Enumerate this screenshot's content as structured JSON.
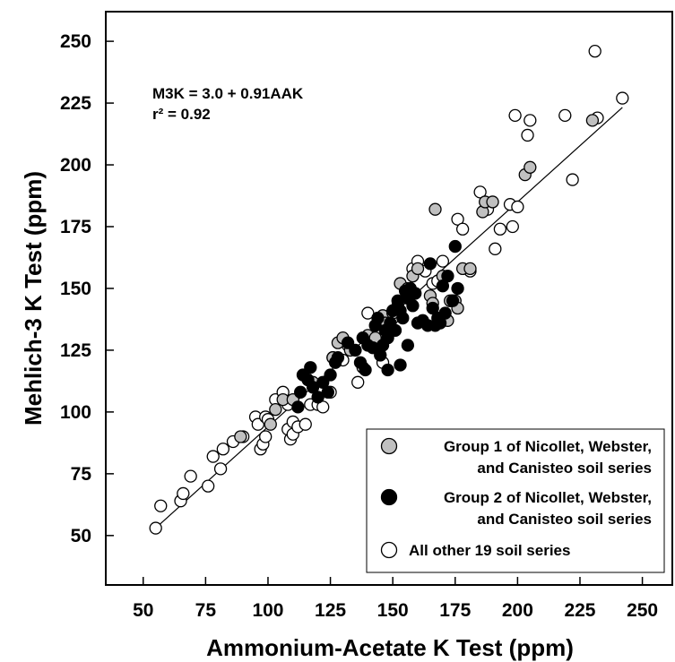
{
  "chart_data": {
    "type": "scatter",
    "xlabel": "Ammonium-Acetate K Test (ppm)",
    "ylabel": "Mehlich-3 K Test (ppm)",
    "xlim": [
      35,
      262
    ],
    "ylim": [
      30,
      262
    ],
    "xticks": [
      50,
      75,
      100,
      125,
      150,
      175,
      200,
      225,
      250
    ],
    "yticks": [
      50,
      75,
      100,
      125,
      150,
      175,
      200,
      225,
      250
    ],
    "grid": false,
    "legend_position": "bottom-right",
    "annotations": {
      "equation": "M3K = 3.0 + 0.91AAK",
      "r2": "r² = 0.92"
    },
    "regression": {
      "intercept": 3.0,
      "slope": 0.91,
      "x_range": [
        55,
        242
      ]
    },
    "series": [
      {
        "name": "Group 1 of Nicollet, Webster, and Canisteo soil series",
        "legend_lines": [
          "Group 1 of Nicollet, Webster,",
          "and Canisteo soil series"
        ],
        "marker": "filled-gray",
        "color": "#c0c0c0",
        "points": [
          [
            89,
            90
          ],
          [
            101,
            95
          ],
          [
            103,
            101
          ],
          [
            106,
            105
          ],
          [
            110,
            105
          ],
          [
            118,
            112
          ],
          [
            126,
            122
          ],
          [
            128,
            128
          ],
          [
            130,
            130
          ],
          [
            133,
            125
          ],
          [
            140,
            131
          ],
          [
            143,
            130
          ],
          [
            146,
            139
          ],
          [
            147,
            136
          ],
          [
            150,
            140
          ],
          [
            153,
            152
          ],
          [
            156,
            150
          ],
          [
            158,
            155
          ],
          [
            160,
            158
          ],
          [
            165,
            147
          ],
          [
            166,
            144
          ],
          [
            167,
            182
          ],
          [
            170,
            155
          ],
          [
            172,
            137
          ],
          [
            173,
            145
          ],
          [
            175,
            145
          ],
          [
            176,
            142
          ],
          [
            178,
            158
          ],
          [
            181,
            158
          ],
          [
            186,
            181
          ],
          [
            187,
            185
          ],
          [
            190,
            185
          ],
          [
            203,
            196
          ],
          [
            205,
            199
          ],
          [
            230,
            218
          ]
        ]
      },
      {
        "name": "Group 2 of Nicollet, Webster, and Canisteo soil series",
        "legend_lines": [
          "Group 2 of Nicollet, Webster,",
          "and Canisteo soil series"
        ],
        "marker": "filled-black",
        "color": "#000000",
        "points": [
          [
            112,
            102
          ],
          [
            113,
            108
          ],
          [
            114,
            115
          ],
          [
            116,
            113
          ],
          [
            117,
            118
          ],
          [
            118,
            110
          ],
          [
            120,
            106
          ],
          [
            122,
            112
          ],
          [
            124,
            108
          ],
          [
            125,
            115
          ],
          [
            127,
            120
          ],
          [
            128,
            122
          ],
          [
            132,
            128
          ],
          [
            135,
            125
          ],
          [
            137,
            120
          ],
          [
            138,
            130
          ],
          [
            139,
            117
          ],
          [
            140,
            127
          ],
          [
            142,
            126
          ],
          [
            143,
            135
          ],
          [
            144,
            138
          ],
          [
            145,
            123
          ],
          [
            146,
            127
          ],
          [
            147,
            133
          ],
          [
            148,
            130
          ],
          [
            149,
            136
          ],
          [
            150,
            141
          ],
          [
            151,
            133
          ],
          [
            152,
            145
          ],
          [
            153,
            141
          ],
          [
            154,
            138
          ],
          [
            155,
            149
          ],
          [
            156,
            146
          ],
          [
            157,
            150
          ],
          [
            158,
            143
          ],
          [
            159,
            148
          ],
          [
            160,
            136
          ],
          [
            162,
            137
          ],
          [
            164,
            135
          ],
          [
            165,
            160
          ],
          [
            166,
            142
          ],
          [
            167,
            135
          ],
          [
            168,
            138
          ],
          [
            169,
            136
          ],
          [
            170,
            151
          ],
          [
            171,
            140
          ],
          [
            172,
            155
          ],
          [
            174,
            145
          ],
          [
            175,
            167
          ],
          [
            176,
            150
          ],
          [
            148,
            117
          ],
          [
            153,
            119
          ],
          [
            156,
            127
          ]
        ]
      },
      {
        "name": "All other 19 soil series",
        "marker": "open",
        "color": "#ffffff",
        "points": [
          [
            55,
            53
          ],
          [
            57,
            62
          ],
          [
            65,
            64
          ],
          [
            66,
            67
          ],
          [
            69,
            74
          ],
          [
            76,
            70
          ],
          [
            78,
            82
          ],
          [
            81,
            77
          ],
          [
            82,
            85
          ],
          [
            86,
            88
          ],
          [
            90,
            90
          ],
          [
            95,
            98
          ],
          [
            96,
            95
          ],
          [
            97,
            85
          ],
          [
            98,
            87
          ],
          [
            99,
            98
          ],
          [
            99,
            90
          ],
          [
            100,
            97
          ],
          [
            103,
            105
          ],
          [
            106,
            108
          ],
          [
            108,
            103
          ],
          [
            108,
            93
          ],
          [
            109,
            89
          ],
          [
            110,
            91
          ],
          [
            110,
            96
          ],
          [
            112,
            94
          ],
          [
            115,
            95
          ],
          [
            117,
            103
          ],
          [
            120,
            103
          ],
          [
            122,
            102
          ],
          [
            125,
            108
          ],
          [
            126,
            122
          ],
          [
            130,
            121
          ],
          [
            132,
            127
          ],
          [
            136,
            112
          ],
          [
            138,
            118
          ],
          [
            140,
            140
          ],
          [
            142,
            128
          ],
          [
            146,
            120
          ],
          [
            150,
            138
          ],
          [
            152,
            143
          ],
          [
            157,
            150
          ],
          [
            158,
            158
          ],
          [
            160,
            161
          ],
          [
            163,
            157
          ],
          [
            166,
            152
          ],
          [
            168,
            153
          ],
          [
            170,
            161
          ],
          [
            174,
            145
          ],
          [
            176,
            178
          ],
          [
            178,
            174
          ],
          [
            181,
            157
          ],
          [
            185,
            189
          ],
          [
            188,
            182
          ],
          [
            191,
            166
          ],
          [
            193,
            174
          ],
          [
            197,
            184
          ],
          [
            198,
            175
          ],
          [
            199,
            220
          ],
          [
            200,
            183
          ],
          [
            204,
            212
          ],
          [
            205,
            218
          ],
          [
            219,
            220
          ],
          [
            222,
            194
          ],
          [
            231,
            246
          ],
          [
            232,
            219
          ],
          [
            242,
            227
          ]
        ]
      }
    ]
  }
}
